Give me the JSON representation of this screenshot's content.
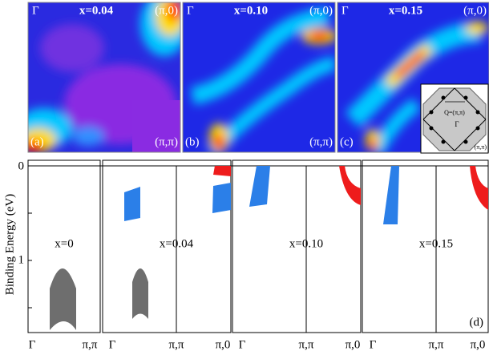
{
  "panels": [
    {
      "label": "(a)",
      "gamma": "Γ",
      "doping": "x=0.04",
      "corner_top": "(π,0)",
      "corner_bottom": "(π,π)"
    },
    {
      "label": "(b)",
      "gamma": "Γ",
      "doping": "x=0.10",
      "corner_top": "(π,0)",
      "corner_bottom": "(π,π)"
    },
    {
      "label": "(c)",
      "gamma": "Γ",
      "doping": "x=0.15",
      "corner_top": "(π,0)",
      "corner_bottom": "(π,π)"
    }
  ],
  "inset": {
    "q": "Q=(π,π)",
    "gamma": "Γ",
    "corner": "(π,π)"
  },
  "dispersion": {
    "axis_label": "Binding Energy (eV)",
    "yticks": [
      "0",
      "1"
    ],
    "label": "(d)",
    "panels": [
      {
        "doping": "x=0",
        "xlabels": [
          "Γ",
          "π,π"
        ]
      },
      {
        "doping": "x=0.04",
        "xlabels": [
          "Γ",
          "π,π",
          "π,0"
        ]
      },
      {
        "doping": "x=0.10",
        "xlabels": [
          "Γ",
          "π,π",
          "π,0"
        ]
      },
      {
        "doping": "x=0.15",
        "xlabels": [
          "Γ",
          "π,π",
          "π,0"
        ]
      }
    ]
  }
}
